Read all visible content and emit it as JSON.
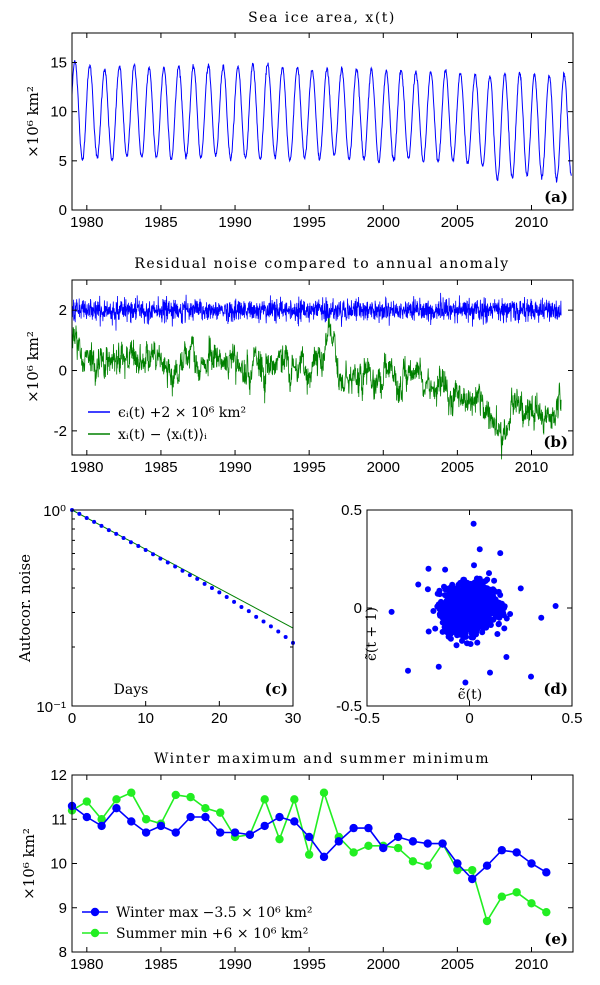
{
  "colors": {
    "blue": "#0000ff",
    "green": "#008000",
    "lightgreen": "#22ee22",
    "blue_bright": "#0000ff"
  },
  "chart_data": [
    {
      "id": "a",
      "type": "line",
      "title": "Sea ice area, x(t)",
      "ylabel": "×10⁶ km²",
      "panel_label": "(a)",
      "xlim": [
        1979,
        2012.8
      ],
      "ylim": [
        0,
        18
      ],
      "xticks": [
        1980,
        1985,
        1990,
        1995,
        2000,
        2005,
        2010
      ],
      "yticks": [
        0,
        5,
        10,
        15
      ],
      "series": [
        {
          "color": "#0000ff",
          "annual_max": [
            15.2,
            14.7,
            14.3,
            14.6,
            14.7,
            14.4,
            14.5,
            14.6,
            14.6,
            14.7,
            14.7,
            14.6,
            14.8,
            14.9,
            14.5,
            14.5,
            14.2,
            14.3,
            14.3,
            14.4,
            14.3,
            14.1,
            14.2,
            14.1,
            14.0,
            14.2,
            13.9,
            13.8,
            13.6,
            13.9,
            14.0,
            13.8,
            13.6,
            13.8
          ],
          "annual_min": [
            5.1,
            5.3,
            5.0,
            5.4,
            5.3,
            5.3,
            5.2,
            5.4,
            5.3,
            5.5,
            5.2,
            5.3,
            5.1,
            5.4,
            5.0,
            5.3,
            5.2,
            5.6,
            5.1,
            5.2,
            5.0,
            5.1,
            5.2,
            4.9,
            4.9,
            5.0,
            4.7,
            4.4,
            3.0,
            3.3,
            3.5,
            3.3,
            3.0,
            3.5
          ]
        }
      ]
    },
    {
      "id": "b",
      "type": "line",
      "title": "Residual noise compared to annual anomaly",
      "ylabel": "×10⁶ km²",
      "panel_label": "(b)",
      "xlim": [
        1979,
        2012.8
      ],
      "ylim": [
        -2.8,
        3
      ],
      "xticks": [
        1980,
        1985,
        1990,
        1995,
        2000,
        2005,
        2010
      ],
      "yticks": [
        -2,
        0,
        2
      ],
      "series": [
        {
          "name": "ϵᵢ(t) +2 × 10⁶ km²",
          "color": "#0000ff",
          "x": [
            1979,
            2012
          ],
          "y": [
            2.0,
            2.0
          ]
        },
        {
          "name": "xᵢ(t) − ⟨xᵢ(t)⟩ᵢ",
          "color": "#008000",
          "x": [
            1979,
            1981,
            1983,
            1985,
            1987,
            1989,
            1991,
            1993,
            1995,
            1996.5,
            1997,
            1999,
            2001,
            2003,
            2005,
            2007,
            2008,
            2009,
            2011,
            2012
          ],
          "y": [
            0.8,
            0.3,
            0.4,
            0.0,
            0.2,
            0.5,
            0.1,
            0.2,
            -0.3,
            1.2,
            -0.2,
            -0.1,
            -0.2,
            -0.5,
            -0.8,
            -1.2,
            -2.2,
            -1.3,
            -1.4,
            -1.0
          ]
        }
      ]
    },
    {
      "id": "c",
      "type": "line",
      "ylabel": "Autocor. noise",
      "xlabel": "Days",
      "panel_label": "(c)",
      "xlim": [
        0,
        30
      ],
      "ylim_log10": [
        -1,
        0
      ],
      "xticks": [
        0,
        10,
        20,
        30
      ],
      "yticks_label": [
        "10⁰",
        "10⁻¹"
      ],
      "series": [
        {
          "type": "line",
          "color": "#008000",
          "x": [
            0,
            30
          ],
          "y": [
            1.0,
            0.25
          ]
        },
        {
          "type": "scatter",
          "color": "#0000ff",
          "x": [
            0,
            1,
            2,
            3,
            4,
            5,
            6,
            7,
            8,
            9,
            10,
            11,
            12,
            13,
            14,
            15,
            16,
            17,
            18,
            19,
            20,
            21,
            22,
            23,
            24,
            25,
            26,
            27,
            28,
            29,
            30
          ],
          "y": [
            1.0,
            0.955,
            0.91,
            0.87,
            0.83,
            0.79,
            0.755,
            0.72,
            0.685,
            0.655,
            0.625,
            0.595,
            0.565,
            0.54,
            0.515,
            0.49,
            0.465,
            0.445,
            0.42,
            0.4,
            0.38,
            0.36,
            0.34,
            0.32,
            0.305,
            0.285,
            0.27,
            0.255,
            0.24,
            0.225,
            0.21
          ]
        }
      ]
    },
    {
      "id": "d",
      "type": "scatter",
      "xlabel": "ϵ̃(t)",
      "ylabel": "ϵ̃(t + 1)",
      "panel_label": "(d)",
      "xlim": [
        -0.5,
        0.5
      ],
      "ylim": [
        -0.5,
        0.5
      ],
      "xticks": [
        -0.5,
        0,
        0.5
      ],
      "yticks": [
        -0.5,
        0,
        0.5
      ],
      "series": [
        {
          "color": "#0000ff",
          "core_std": 0.06,
          "outliers_x": [
            0.42,
            -0.38,
            0.3,
            -0.3,
            0.02,
            0.05,
            -0.02,
            0.25,
            -0.25,
            0.35,
            -0.2,
            0.18,
            0.15,
            -0.15,
            0.1
          ],
          "outliers_y": [
            0.01,
            -0.02,
            -0.35,
            -0.32,
            0.43,
            0.3,
            -0.38,
            0.1,
            0.12,
            -0.05,
            0.2,
            -0.25,
            0.28,
            -0.3,
            -0.33
          ]
        }
      ]
    },
    {
      "id": "e",
      "type": "line",
      "title": "Winter maximum and summer minimum",
      "ylabel": "×10⁶ km²",
      "panel_label": "(e)",
      "xlim": [
        1979,
        2012.8
      ],
      "ylim": [
        8,
        12
      ],
      "xticks": [
        1980,
        1985,
        1990,
        1995,
        2000,
        2005,
        2010
      ],
      "yticks": [
        8,
        9,
        10,
        11,
        12
      ],
      "x": [
        1979,
        1980,
        1981,
        1982,
        1983,
        1984,
        1985,
        1986,
        1987,
        1988,
        1989,
        1990,
        1991,
        1992,
        1993,
        1994,
        1995,
        1996,
        1997,
        1998,
        1999,
        2000,
        2001,
        2002,
        2003,
        2004,
        2005,
        2006,
        2007,
        2008,
        2009,
        2010,
        2011
      ],
      "series": [
        {
          "name": "Winter max −3.5 × 10⁶ km²",
          "color": "#0000ff",
          "values": [
            11.3,
            11.05,
            10.85,
            11.25,
            10.95,
            10.7,
            10.85,
            10.7,
            11.05,
            11.05,
            10.7,
            10.7,
            10.65,
            10.85,
            11.05,
            10.95,
            10.6,
            10.15,
            10.5,
            10.8,
            10.8,
            10.35,
            10.6,
            10.5,
            10.45,
            10.45,
            10.0,
            9.65,
            9.95,
            10.3,
            10.25,
            10.0,
            9.8
          ]
        },
        {
          "name": "Summer min +6 × 10⁶ km²",
          "color": "#22ee22",
          "values": [
            11.2,
            11.4,
            11.0,
            11.45,
            11.6,
            11.0,
            10.9,
            11.55,
            11.5,
            11.25,
            11.15,
            10.6,
            10.65,
            11.45,
            10.55,
            11.45,
            10.2,
            11.6,
            10.6,
            10.25,
            10.4,
            10.4,
            10.35,
            10.05,
            9.95,
            10.45,
            9.85,
            9.85,
            8.7,
            9.25,
            9.35,
            9.1,
            8.9
          ]
        }
      ]
    }
  ]
}
